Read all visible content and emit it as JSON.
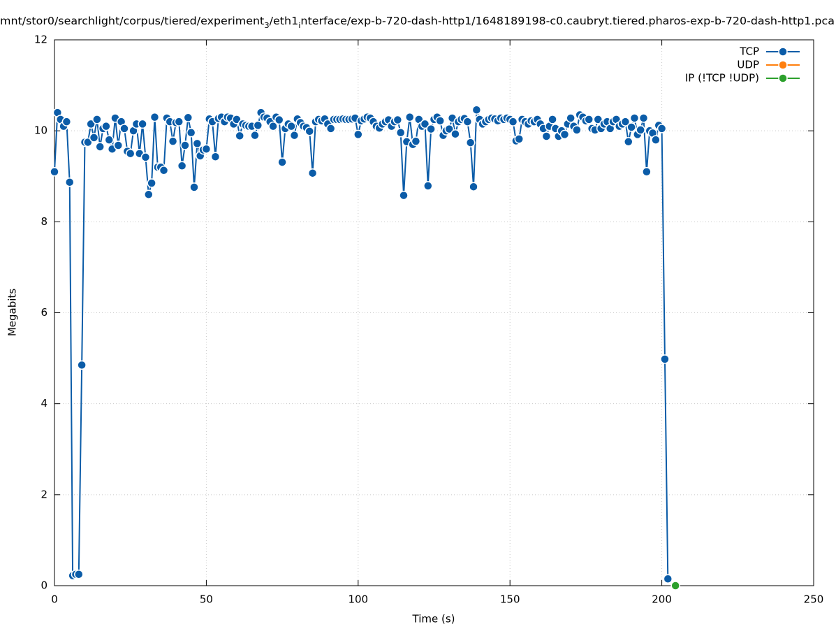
{
  "chart_data": {
    "type": "line",
    "title": [
      {
        "text": "mnt/stor0/searchlight/corpus/tiered/experiment",
        "sub": false
      },
      {
        "text": "3",
        "sub": true
      },
      {
        "text": "/eth1",
        "sub": false
      },
      {
        "text": "i",
        "sub": true
      },
      {
        "text": "nterface/exp-b-720-dash-http1/1648189198-c0.caubryt.tiered.pharos-exp-b-720-dash-http1.pca",
        "sub": false
      }
    ],
    "xlabel": "Time (s)",
    "ylabel": "Megabits",
    "xlim": [
      0,
      250
    ],
    "xticks": [
      0,
      50,
      100,
      150,
      200,
      250
    ],
    "ylim": [
      0,
      12
    ],
    "yticks": [
      0,
      2,
      4,
      6,
      8,
      10,
      12
    ],
    "grid": true,
    "legend": "top-right",
    "series": [
      {
        "name": "TCP",
        "color": "#0b5ca8",
        "x": [
          0,
          1,
          2,
          3,
          4,
          5,
          6,
          7,
          8,
          9,
          10,
          11,
          12,
          13,
          14,
          15,
          16,
          17,
          18,
          19,
          20,
          21,
          22,
          23,
          24,
          25,
          26,
          27,
          28,
          29,
          30,
          31,
          32,
          33,
          34,
          35,
          36,
          37,
          38,
          39,
          40,
          41,
          42,
          43,
          44,
          45,
          46,
          47,
          48,
          49,
          50,
          51,
          52,
          53,
          54,
          55,
          56,
          57,
          58,
          59,
          60,
          61,
          62,
          63,
          64,
          65,
          66,
          67,
          68,
          69,
          70,
          71,
          72,
          73,
          74,
          75,
          76,
          77,
          78,
          79,
          80,
          81,
          82,
          83,
          84,
          85,
          86,
          87,
          88,
          89,
          90,
          91,
          92,
          93,
          94,
          95,
          96,
          97,
          98,
          99,
          100,
          101,
          102,
          103,
          104,
          105,
          106,
          107,
          108,
          109,
          110,
          111,
          112,
          113,
          114,
          115,
          116,
          117,
          118,
          119,
          120,
          121,
          122,
          123,
          124,
          125,
          126,
          127,
          128,
          129,
          130,
          131,
          132,
          133,
          134,
          135,
          136,
          137,
          138,
          139,
          140,
          141,
          142,
          143,
          144,
          145,
          146,
          147,
          148,
          149,
          150,
          151,
          152,
          153,
          154,
          155,
          156,
          157,
          158,
          159,
          160,
          161,
          162,
          163,
          164,
          165,
          166,
          167,
          168,
          169,
          170,
          171,
          172,
          173,
          174,
          175,
          176,
          177,
          178,
          179,
          180,
          181,
          182,
          183,
          184,
          185,
          186,
          187,
          188,
          189,
          190,
          191,
          192,
          193,
          194,
          195,
          196,
          197,
          198,
          199,
          200,
          201,
          202
        ],
        "values": [
          9.1,
          10.4,
          10.25,
          10.1,
          10.2,
          8.87,
          0.22,
          0.25,
          0.25,
          4.85,
          9.75,
          9.75,
          10.15,
          9.85,
          10.25,
          9.65,
          10.05,
          10.1,
          9.8,
          9.6,
          10.28,
          9.68,
          10.2,
          10.05,
          9.55,
          9.5,
          10.0,
          10.15,
          9.5,
          10.15,
          9.42,
          8.6,
          8.85,
          10.3,
          9.2,
          9.2,
          9.13,
          10.28,
          10.2,
          9.77,
          10.18,
          10.2,
          9.23,
          9.68,
          10.29,
          9.96,
          8.76,
          9.72,
          9.45,
          9.58,
          9.6,
          10.26,
          10.2,
          9.43,
          10.27,
          10.3,
          10.2,
          10.3,
          10.28,
          10.15,
          10.25,
          9.89,
          10.15,
          10.12,
          10.1,
          10.1,
          9.9,
          10.12,
          10.4,
          10.3,
          10.28,
          10.2,
          10.1,
          10.3,
          10.24,
          9.31,
          10.05,
          10.15,
          10.1,
          9.9,
          10.26,
          10.18,
          10.1,
          10.07,
          9.99,
          9.07,
          10.2,
          10.25,
          10.22,
          10.26,
          10.15,
          10.05,
          10.25,
          10.25,
          10.25,
          10.26,
          10.25,
          10.25,
          10.26,
          10.28,
          9.92,
          10.22,
          10.26,
          10.3,
          10.28,
          10.2,
          10.1,
          10.06,
          10.15,
          10.2,
          10.24,
          10.1,
          10.2,
          10.24,
          9.96,
          8.58,
          9.76,
          10.3,
          9.7,
          9.77,
          10.25,
          10.1,
          10.15,
          8.79,
          10.04,
          10.25,
          10.3,
          10.22,
          9.9,
          10.0,
          10.04,
          10.28,
          9.93,
          10.2,
          10.25,
          10.27,
          10.2,
          9.74,
          8.77,
          10.46,
          10.25,
          10.15,
          10.2,
          10.25,
          10.28,
          10.26,
          10.22,
          10.28,
          10.25,
          10.28,
          10.25,
          10.2,
          9.78,
          9.82,
          10.25,
          10.2,
          10.15,
          10.22,
          10.2,
          10.25,
          10.15,
          10.05,
          9.88,
          10.1,
          10.25,
          10.05,
          9.88,
          10.0,
          9.92,
          10.15,
          10.28,
          10.1,
          10.02,
          10.35,
          10.3,
          10.22,
          10.25,
          10.05,
          10.02,
          10.25,
          10.05,
          10.15,
          10.2,
          10.05,
          10.2,
          10.25,
          10.1,
          10.15,
          10.2,
          9.76,
          10.08,
          10.28,
          9.92,
          10.02,
          10.28,
          9.1,
          10.0,
          9.95,
          9.8,
          10.12,
          10.05,
          4.98,
          0.15
        ]
      },
      {
        "name": "UDP",
        "color": "#ff7f0e",
        "x": [],
        "values": []
      },
      {
        "name": "IP (!TCP  !UDP)",
        "color": "#2ca02c",
        "x": [
          204.5
        ],
        "values": [
          0
        ]
      }
    ]
  }
}
